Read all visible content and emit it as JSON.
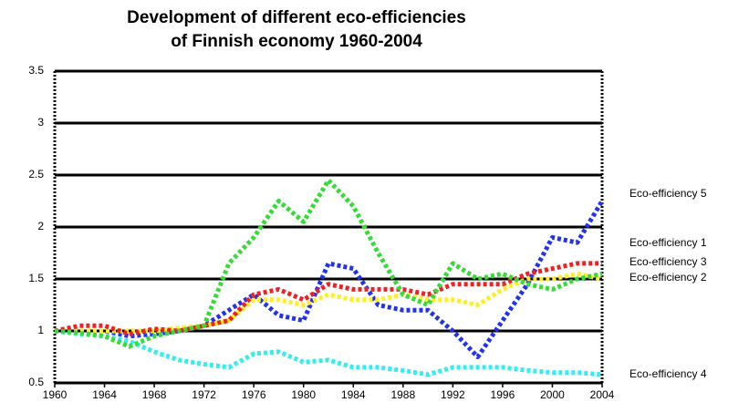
{
  "chart_data": {
    "type": "line",
    "title": [
      "Development of different eco-efficiencies",
      "of Finnish economy 1960-2004"
    ],
    "x": [
      1960,
      1962,
      1964,
      1966,
      1968,
      1970,
      1972,
      1974,
      1976,
      1978,
      1980,
      1982,
      1984,
      1986,
      1988,
      1990,
      1992,
      1994,
      1996,
      1998,
      2000,
      2002,
      2004
    ],
    "series": [
      {
        "name": "Eco-efficiency 1",
        "color": "#2233ee",
        "values": [
          1.0,
          1.0,
          1.0,
          0.95,
          0.97,
          1.0,
          1.05,
          1.2,
          1.35,
          1.15,
          1.1,
          1.65,
          1.6,
          1.25,
          1.2,
          1.2,
          1.0,
          0.75,
          1.1,
          1.45,
          1.9,
          1.85,
          2.25
        ]
      },
      {
        "name": "Eco-efficiency 2",
        "color": "#ffee22",
        "values": [
          1.0,
          1.0,
          1.0,
          1.0,
          1.0,
          1.03,
          1.05,
          1.1,
          1.3,
          1.3,
          1.25,
          1.35,
          1.3,
          1.3,
          1.35,
          1.3,
          1.3,
          1.25,
          1.4,
          1.5,
          1.5,
          1.55,
          1.5
        ]
      },
      {
        "name": "Eco-efficiency 3",
        "color": "#ee2222",
        "values": [
          1.0,
          1.05,
          1.05,
          0.97,
          1.02,
          1.0,
          1.05,
          1.1,
          1.35,
          1.4,
          1.3,
          1.45,
          1.4,
          1.4,
          1.4,
          1.35,
          1.45,
          1.45,
          1.45,
          1.55,
          1.6,
          1.65,
          1.65
        ]
      },
      {
        "name": "Eco-efficiency 4",
        "color": "#33eeee",
        "values": [
          1.0,
          0.97,
          0.95,
          0.9,
          0.8,
          0.72,
          0.68,
          0.65,
          0.78,
          0.8,
          0.7,
          0.72,
          0.65,
          0.65,
          0.62,
          0.58,
          0.65,
          0.65,
          0.65,
          0.62,
          0.6,
          0.6,
          0.58
        ]
      },
      {
        "name": "Eco-efficiency 5",
        "color": "#33dd33",
        "values": [
          1.0,
          0.98,
          0.95,
          0.85,
          0.95,
          1.0,
          1.05,
          1.65,
          1.9,
          2.25,
          2.05,
          2.45,
          2.2,
          1.75,
          1.35,
          1.25,
          1.65,
          1.5,
          1.55,
          1.45,
          1.4,
          1.5,
          1.55
        ]
      }
    ],
    "xlim": [
      1960,
      2004
    ],
    "xticks": [
      1960,
      1964,
      1968,
      1972,
      1976,
      1980,
      1984,
      1988,
      1992,
      1996,
      2000,
      2004
    ],
    "ylim": [
      0.5,
      3.5
    ],
    "yticks": [
      0.5,
      1,
      1.5,
      2,
      2.5,
      3,
      3.5
    ],
    "grid": true
  }
}
